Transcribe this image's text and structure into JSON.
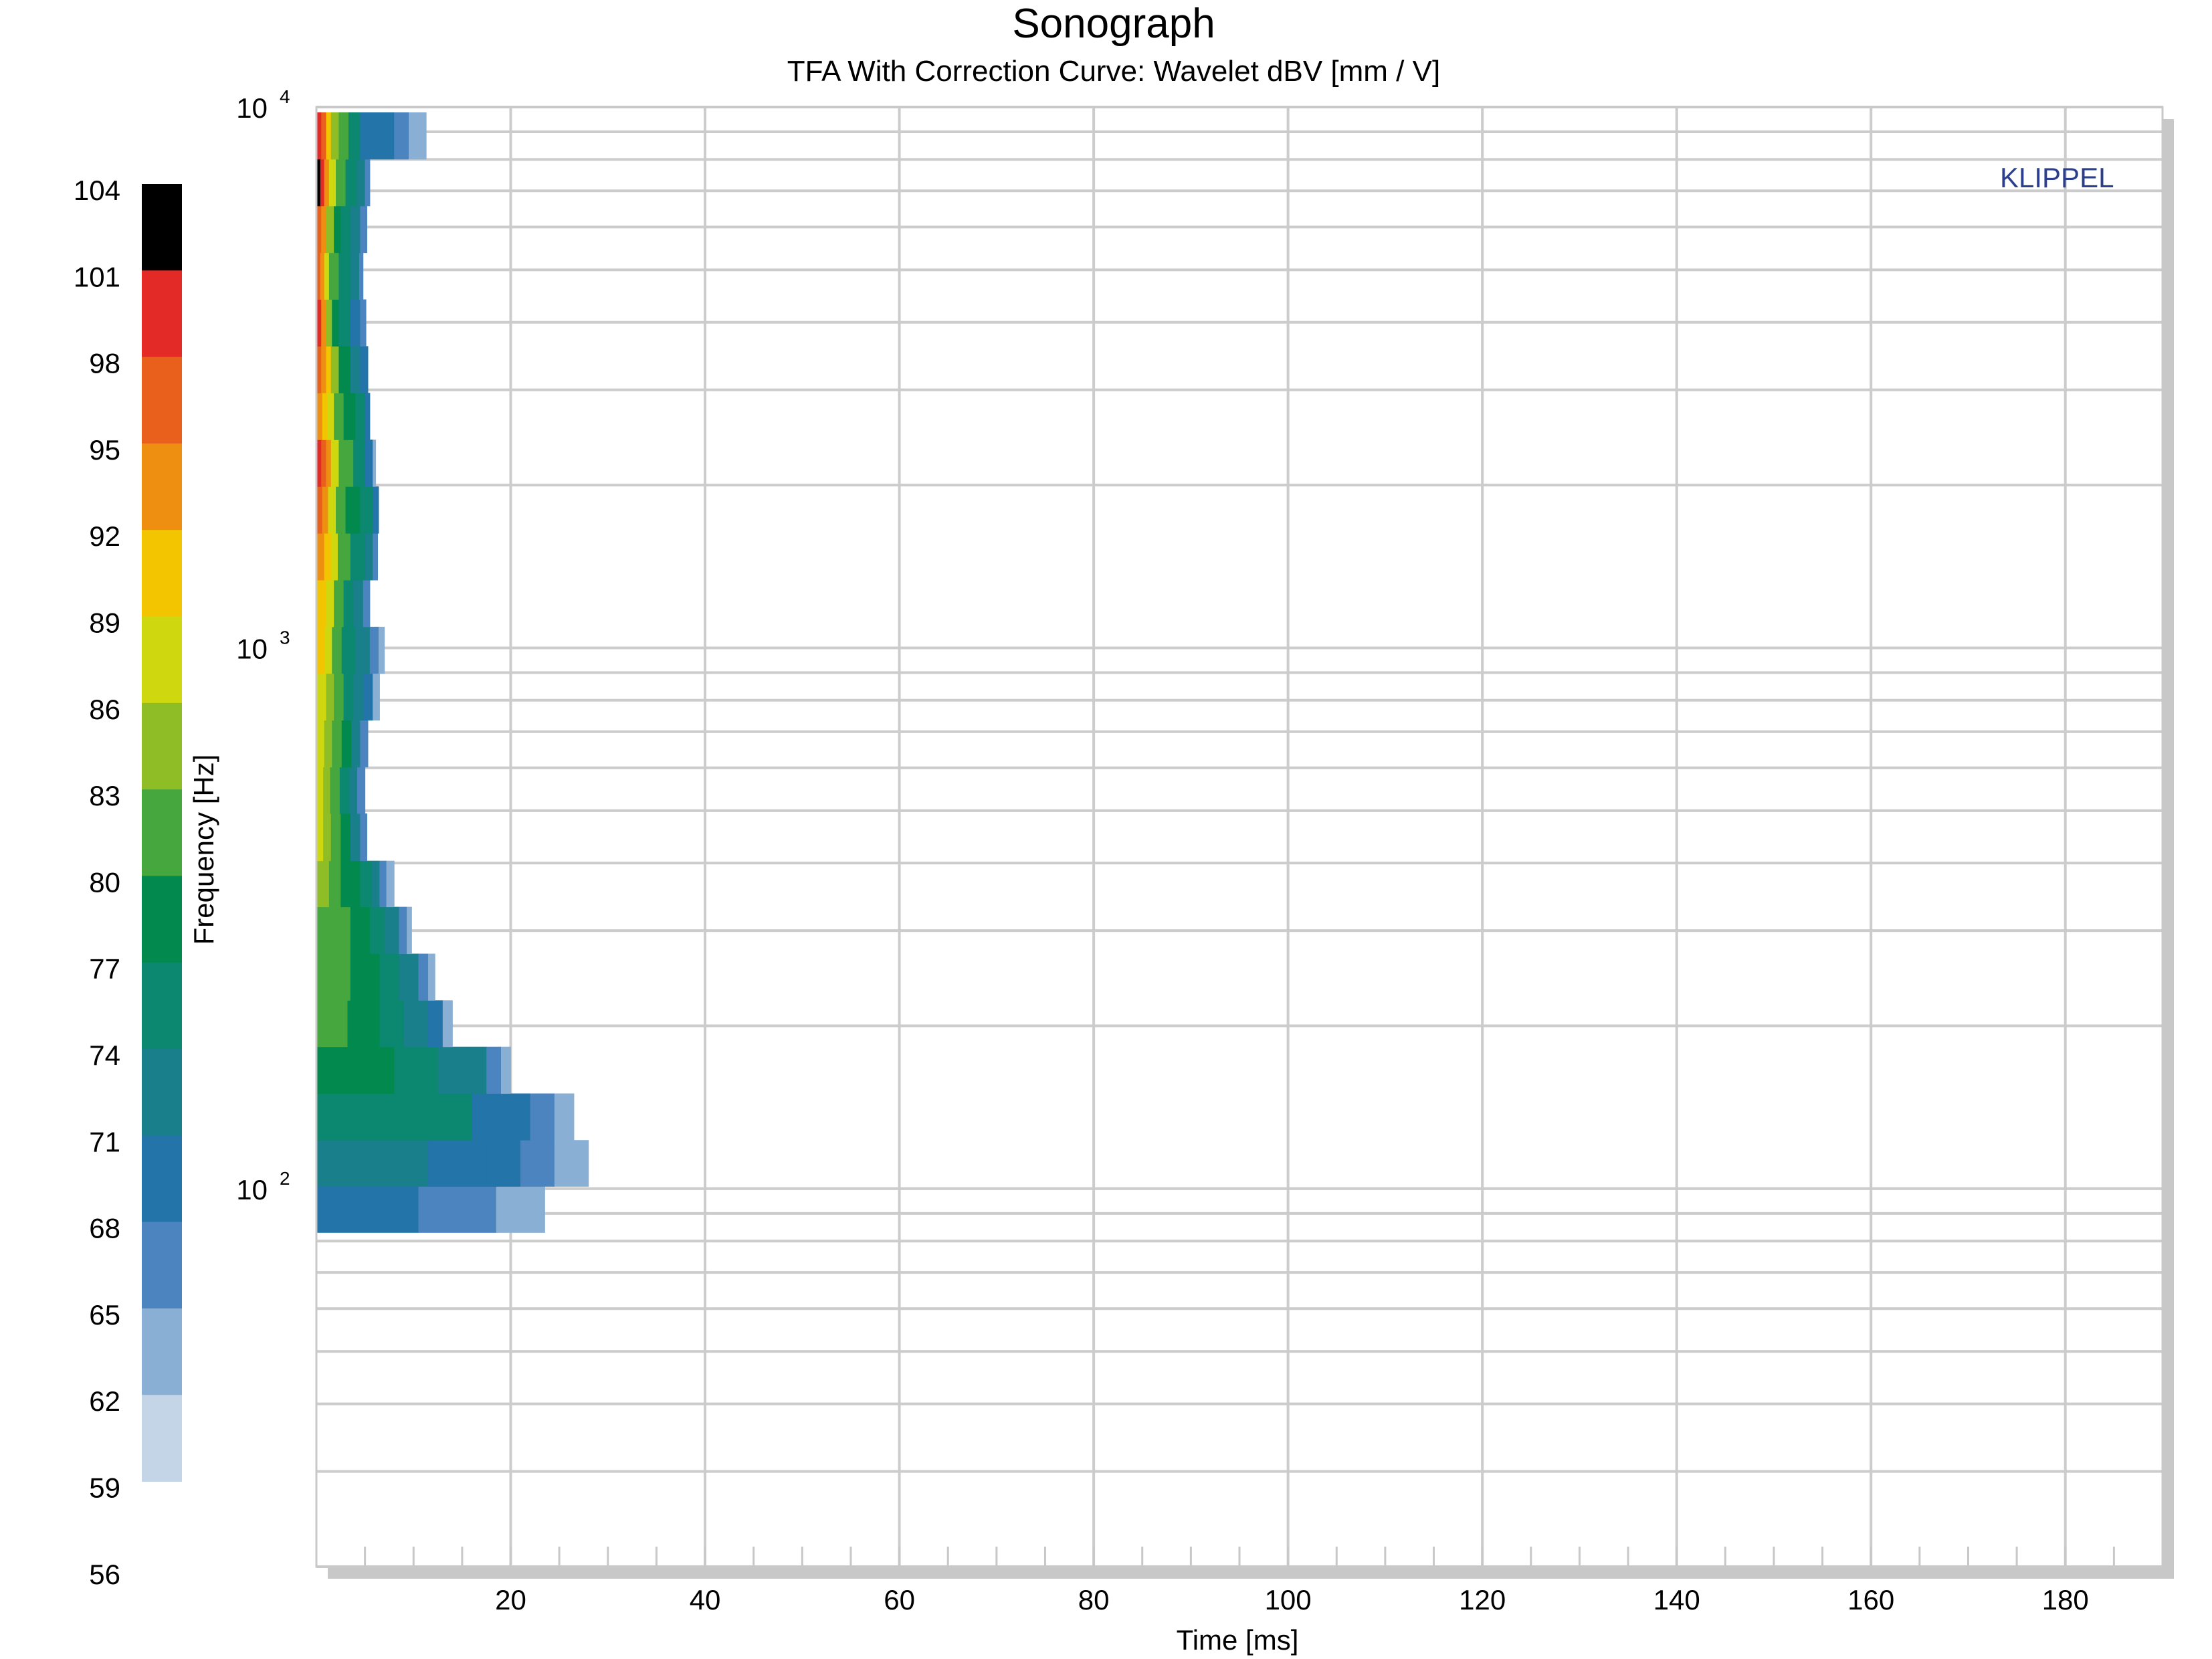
{
  "chart_data": {
    "type": "heatmap",
    "title": "Sonograph",
    "subtitle": "TFA With Correction Curve: Wavelet dBV [mm / V]",
    "brand": "KLIPPEL",
    "xlabel": "Time [ms]",
    "ylabel": "Frequency [Hz]",
    "xlim": [
      0,
      190
    ],
    "ylim": [
      20,
      10000
    ],
    "y_scale": "log",
    "grid": true,
    "x_ticks": [
      20,
      40,
      60,
      80,
      100,
      120,
      140,
      160,
      180
    ],
    "y_ticks": [
      {
        "base": "10",
        "exp": "2",
        "value": 100
      },
      {
        "base": "10",
        "exp": "3",
        "value": 1000
      },
      {
        "base": "10",
        "exp": "4",
        "value": 10000
      }
    ],
    "colorbar": {
      "ticks": [
        104,
        101,
        98,
        95,
        92,
        89,
        86,
        83,
        80,
        77,
        74,
        71,
        68,
        65,
        62,
        59,
        56
      ],
      "bands": [
        {
          "low": 101,
          "high": 104,
          "color": "#000000"
        },
        {
          "low": 98,
          "high": 101,
          "color": "#e32a27"
        },
        {
          "low": 95,
          "high": 98,
          "color": "#e8601c"
        },
        {
          "low": 92,
          "high": 95,
          "color": "#ee8f12"
        },
        {
          "low": 89,
          "high": 92,
          "color": "#f2c500"
        },
        {
          "low": 86,
          "high": 89,
          "color": "#cfd80f"
        },
        {
          "low": 83,
          "high": 86,
          "color": "#8fbd26"
        },
        {
          "low": 80,
          "high": 83,
          "color": "#46a73f"
        },
        {
          "low": 77,
          "high": 80,
          "color": "#02894e"
        },
        {
          "low": 74,
          "high": 77,
          "color": "#0c8770"
        },
        {
          "low": 71,
          "high": 74,
          "color": "#197f8a"
        },
        {
          "low": 68,
          "high": 71,
          "color": "#2374a8"
        },
        {
          "low": 65,
          "high": 68,
          "color": "#4b84bf"
        },
        {
          "low": 62,
          "high": 65,
          "color": "#8aafd4"
        },
        {
          "low": 59,
          "high": 62,
          "color": "#c3d5e7"
        }
      ]
    },
    "bands": [
      {
        "f_low": 83,
        "f_high": 101,
        "segments": [
          [
            0,
            10.5,
            68
          ],
          [
            10.5,
            18.5,
            65
          ],
          [
            18.5,
            23.5,
            62
          ]
        ]
      },
      {
        "f_low": 101,
        "f_high": 123,
        "segments": [
          [
            0,
            11.5,
            73
          ],
          [
            11.5,
            17.5,
            70
          ],
          [
            17.5,
            21,
            68
          ],
          [
            21,
            24.5,
            65
          ],
          [
            24.5,
            28,
            62
          ]
        ]
      },
      {
        "f_low": 123,
        "f_high": 150,
        "segments": [
          [
            0,
            5.5,
            76
          ],
          [
            5.5,
            12.5,
            75
          ],
          [
            12.5,
            16,
            74
          ],
          [
            16,
            19.5,
            70
          ],
          [
            19.5,
            22,
            68
          ],
          [
            22,
            24.5,
            67
          ],
          [
            24.5,
            26.5,
            62
          ]
        ]
      },
      {
        "f_low": 150,
        "f_high": 183,
        "segments": [
          [
            0,
            8,
            79
          ],
          [
            8,
            12.5,
            76
          ],
          [
            12.5,
            15.5,
            73
          ],
          [
            15.5,
            17.5,
            71
          ],
          [
            17.5,
            19,
            66
          ],
          [
            19,
            20,
            62
          ]
        ]
      },
      {
        "f_low": 183,
        "f_high": 223,
        "segments": [
          [
            0,
            3.2,
            81
          ],
          [
            3.2,
            6.5,
            78
          ],
          [
            6.5,
            9,
            75
          ],
          [
            9,
            11.5,
            72
          ],
          [
            11.5,
            13,
            68
          ],
          [
            13,
            14,
            63
          ]
        ]
      },
      {
        "f_low": 223,
        "f_high": 272,
        "segments": [
          [
            0,
            3.5,
            81
          ],
          [
            3.5,
            6.5,
            78
          ],
          [
            6.5,
            8.5,
            76
          ],
          [
            8.5,
            10.5,
            72
          ],
          [
            10.5,
            11.5,
            66
          ],
          [
            11.5,
            12.2,
            62
          ]
        ]
      },
      {
        "f_low": 272,
        "f_high": 332,
        "segments": [
          [
            0,
            3.5,
            81
          ],
          [
            3.5,
            5.5,
            78
          ],
          [
            5.5,
            7,
            75
          ],
          [
            7,
            8.5,
            72
          ],
          [
            8.5,
            9.3,
            66
          ],
          [
            9.3,
            9.8,
            62
          ]
        ]
      },
      {
        "f_low": 332,
        "f_high": 404,
        "segments": [
          [
            0,
            1.3,
            84
          ],
          [
            1.3,
            2.5,
            81
          ],
          [
            2.5,
            4.5,
            78
          ],
          [
            4.5,
            5.7,
            74
          ],
          [
            5.7,
            6.5,
            71
          ],
          [
            6.5,
            7.2,
            66
          ],
          [
            7.2,
            8,
            62
          ]
        ]
      },
      {
        "f_low": 404,
        "f_high": 494,
        "segments": [
          [
            0,
            0.7,
            86
          ],
          [
            0.7,
            1.5,
            83
          ],
          [
            1.5,
            2.5,
            80
          ],
          [
            2.5,
            3.5,
            77
          ],
          [
            3.5,
            4.5,
            72
          ],
          [
            4.5,
            5.2,
            66
          ]
        ]
      },
      {
        "f_low": 494,
        "f_high": 602,
        "segments": [
          [
            0,
            0.7,
            86
          ],
          [
            0.7,
            1.4,
            84
          ],
          [
            1.4,
            2.4,
            80
          ],
          [
            2.4,
            3.4,
            76
          ],
          [
            3.4,
            4.2,
            72
          ],
          [
            4.2,
            5,
            66
          ]
        ]
      },
      {
        "f_low": 602,
        "f_high": 735,
        "segments": [
          [
            0,
            0.8,
            86
          ],
          [
            0.8,
            1.6,
            83
          ],
          [
            1.6,
            2.6,
            80
          ],
          [
            2.6,
            3.6,
            77
          ],
          [
            3.6,
            4.5,
            73
          ],
          [
            4.5,
            5.3,
            66
          ]
        ]
      },
      {
        "f_low": 735,
        "f_high": 897,
        "segments": [
          [
            0,
            1,
            88
          ],
          [
            1,
            1.8,
            85
          ],
          [
            1.8,
            2.8,
            80
          ],
          [
            2.8,
            3.8,
            76
          ],
          [
            3.8,
            4.8,
            72
          ],
          [
            4.8,
            5.8,
            68
          ],
          [
            5.8,
            6.5,
            62
          ]
        ]
      },
      {
        "f_low": 897,
        "f_high": 1094,
        "segments": [
          [
            0,
            0.9,
            89
          ],
          [
            0.9,
            1.6,
            86
          ],
          [
            1.6,
            2.6,
            80
          ],
          [
            2.6,
            4,
            76
          ],
          [
            4,
            5.5,
            72
          ],
          [
            5.5,
            6.4,
            67
          ],
          [
            6.4,
            7,
            62
          ]
        ]
      },
      {
        "f_low": 1094,
        "f_high": 1335,
        "segments": [
          [
            0,
            1,
            90
          ],
          [
            1,
            1.8,
            88
          ],
          [
            1.8,
            2.8,
            80
          ],
          [
            2.8,
            3.8,
            76
          ],
          [
            3.8,
            4.8,
            72
          ],
          [
            4.8,
            5.5,
            66
          ]
        ]
      },
      {
        "f_low": 1335,
        "f_high": 1629,
        "segments": [
          [
            0,
            0.8,
            93
          ],
          [
            0.8,
            1.5,
            90
          ],
          [
            1.5,
            2.2,
            86
          ],
          [
            2.2,
            3.5,
            80
          ],
          [
            3.5,
            5,
            76
          ],
          [
            5,
            5.8,
            72
          ],
          [
            5.8,
            6.3,
            66
          ]
        ]
      },
      {
        "f_low": 1629,
        "f_high": 1988,
        "segments": [
          [
            0,
            0.6,
            96
          ],
          [
            0.6,
            1.2,
            93
          ],
          [
            1.2,
            2,
            88
          ],
          [
            2,
            3,
            82
          ],
          [
            3,
            4.5,
            78
          ],
          [
            4.5,
            5.8,
            74
          ],
          [
            5.8,
            6.4,
            68
          ]
        ]
      },
      {
        "f_low": 1988,
        "f_high": 2426,
        "segments": [
          [
            0,
            0.5,
            98
          ],
          [
            0.5,
            1,
            95
          ],
          [
            1,
            1.5,
            92
          ],
          [
            1.5,
            2.3,
            86
          ],
          [
            2.3,
            3.8,
            80
          ],
          [
            3.8,
            5,
            76
          ],
          [
            5,
            5.8,
            70
          ],
          [
            5.8,
            6.1,
            64
          ]
        ]
      },
      {
        "f_low": 2426,
        "f_high": 2961,
        "segments": [
          [
            0,
            0.6,
            94
          ],
          [
            0.6,
            1.1,
            90
          ],
          [
            1.1,
            1.8,
            86
          ],
          [
            1.8,
            2.8,
            82
          ],
          [
            2.8,
            4,
            78
          ],
          [
            4,
            5,
            74
          ],
          [
            5,
            5.5,
            68
          ]
        ]
      },
      {
        "f_low": 2961,
        "f_high": 3613,
        "segments": [
          [
            0,
            0.5,
            97
          ],
          [
            0.5,
            1,
            94
          ],
          [
            1,
            1.5,
            90
          ],
          [
            1.5,
            2.3,
            84
          ],
          [
            2.3,
            3.5,
            78
          ],
          [
            3.5,
            4.5,
            73
          ],
          [
            4.5,
            5.3,
            68
          ]
        ]
      },
      {
        "f_low": 3613,
        "f_high": 4409,
        "segments": [
          [
            0,
            0.5,
            99
          ],
          [
            0.5,
            1,
            92
          ],
          [
            1,
            1.6,
            84
          ],
          [
            1.6,
            2.3,
            77
          ],
          [
            2.3,
            3.5,
            74
          ],
          [
            3.5,
            4.5,
            70
          ],
          [
            4.5,
            5.1,
            65
          ]
        ]
      },
      {
        "f_low": 4409,
        "f_high": 5380,
        "segments": [
          [
            0,
            0.4,
            97
          ],
          [
            0.4,
            0.8,
            94
          ],
          [
            0.8,
            1.3,
            88
          ],
          [
            1.3,
            2.3,
            80
          ],
          [
            2.3,
            3.5,
            76
          ],
          [
            3.5,
            4.4,
            72
          ],
          [
            4.4,
            4.8,
            66
          ]
        ]
      },
      {
        "f_low": 5380,
        "f_high": 6565,
        "segments": [
          [
            0,
            0.5,
            97
          ],
          [
            0.5,
            1,
            92
          ],
          [
            1,
            1.8,
            84
          ],
          [
            1.8,
            2.5,
            78
          ],
          [
            2.5,
            3.5,
            76
          ],
          [
            3.5,
            4.5,
            72
          ],
          [
            4.5,
            5.2,
            66
          ]
        ]
      },
      {
        "f_low": 6565,
        "f_high": 8011,
        "segments": [
          [
            0,
            0.4,
            103
          ],
          [
            0.4,
            0.8,
            99
          ],
          [
            0.8,
            1.3,
            93
          ],
          [
            1.3,
            2,
            86
          ],
          [
            2,
            3,
            80
          ],
          [
            3,
            4.2,
            76
          ],
          [
            4.2,
            5,
            71
          ],
          [
            5,
            5.5,
            66
          ]
        ]
      },
      {
        "f_low": 8011,
        "f_high": 9775,
        "segments": [
          [
            0,
            0.5,
            100
          ],
          [
            0.5,
            1,
            96
          ],
          [
            1,
            1.5,
            91
          ],
          [
            1.5,
            2.3,
            84
          ],
          [
            2.3,
            3.3,
            80
          ],
          [
            3.3,
            4.5,
            76
          ],
          [
            4.5,
            8,
            69
          ],
          [
            8,
            9.5,
            66
          ],
          [
            9.5,
            11.3,
            62
          ]
        ]
      }
    ]
  }
}
